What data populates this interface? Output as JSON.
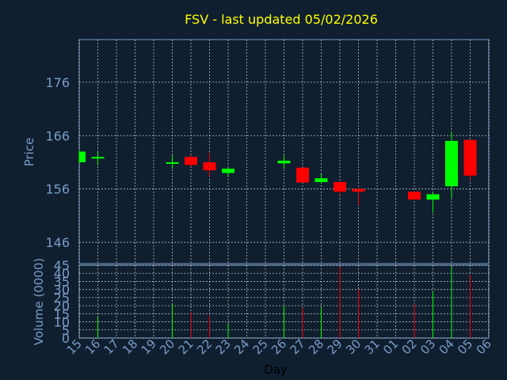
{
  "chart_data": {
    "type": "candlestick",
    "title": "FSV - last updated 05/02/2026",
    "xlabel": "Day",
    "price_panel": {
      "ylabel": "Price",
      "ylim": [
        142,
        184
      ],
      "yticks": [
        146,
        156,
        166,
        176
      ],
      "grid": true
    },
    "volume_panel": {
      "ylabel": "Volume (0000)",
      "ylim": [
        0,
        45
      ],
      "yticks": [
        0,
        5,
        10,
        15,
        20,
        25,
        30,
        35,
        40,
        45
      ],
      "grid": true
    },
    "x_ticks": [
      "15",
      "16",
      "17",
      "18",
      "19",
      "20",
      "21",
      "22",
      "23",
      "24",
      "25",
      "26",
      "27",
      "28",
      "29",
      "30",
      "31",
      "01",
      "02",
      "03",
      "04",
      "05",
      "06"
    ],
    "candles": [
      {
        "day": "15",
        "open": 161.0,
        "close": 163.0,
        "high": 163.2,
        "low": 160.8,
        "volume": 0
      },
      {
        "day": "16",
        "open": 161.8,
        "close": 162.0,
        "high": 163.0,
        "low": 160.5,
        "volume": 13
      },
      {
        "day": "20",
        "open": 160.8,
        "close": 161.0,
        "high": 162.3,
        "low": 159.8,
        "volume": 21
      },
      {
        "day": "21",
        "open": 162.0,
        "close": 160.5,
        "high": 162.3,
        "low": 160.2,
        "volume": 16
      },
      {
        "day": "22",
        "open": 161.0,
        "close": 159.5,
        "high": 162.8,
        "low": 158.3,
        "volume": 14
      },
      {
        "day": "23",
        "open": 159.0,
        "close": 159.8,
        "high": 160.0,
        "low": 158.3,
        "volume": 9
      },
      {
        "day": "26",
        "open": 160.8,
        "close": 161.3,
        "high": 162.3,
        "low": 159.8,
        "volume": 20
      },
      {
        "day": "27",
        "open": 160.0,
        "close": 157.2,
        "high": 160.0,
        "low": 157.2,
        "volume": 19
      },
      {
        "day": "28",
        "open": 157.3,
        "close": 158.0,
        "high": 158.8,
        "low": 157.0,
        "volume": 19
      },
      {
        "day": "29",
        "open": 157.3,
        "close": 155.5,
        "high": 157.3,
        "low": 154.8,
        "volume": 44
      },
      {
        "day": "30",
        "open": 156.0,
        "close": 155.5,
        "high": 156.2,
        "low": 153.0,
        "volume": 30
      },
      {
        "day": "02",
        "open": 155.5,
        "close": 154.0,
        "high": 155.5,
        "low": 154.0,
        "volume": 21
      },
      {
        "day": "03",
        "open": 154.0,
        "close": 155.0,
        "high": 155.3,
        "low": 151.5,
        "volume": 29
      },
      {
        "day": "04",
        "open": 156.5,
        "close": 165.0,
        "high": 166.8,
        "low": 154.3,
        "volume": 44
      },
      {
        "day": "05",
        "open": 165.2,
        "close": 158.5,
        "high": 165.2,
        "low": 157.7,
        "volume": 39
      }
    ],
    "colors": {
      "background": "#0f1f2f",
      "up": "#00ff00",
      "down": "#ff0000",
      "title": "#ffff00",
      "axis_text": "#7a9cc8",
      "grid": "#ffffff",
      "frame": "#7a9cc8"
    }
  }
}
